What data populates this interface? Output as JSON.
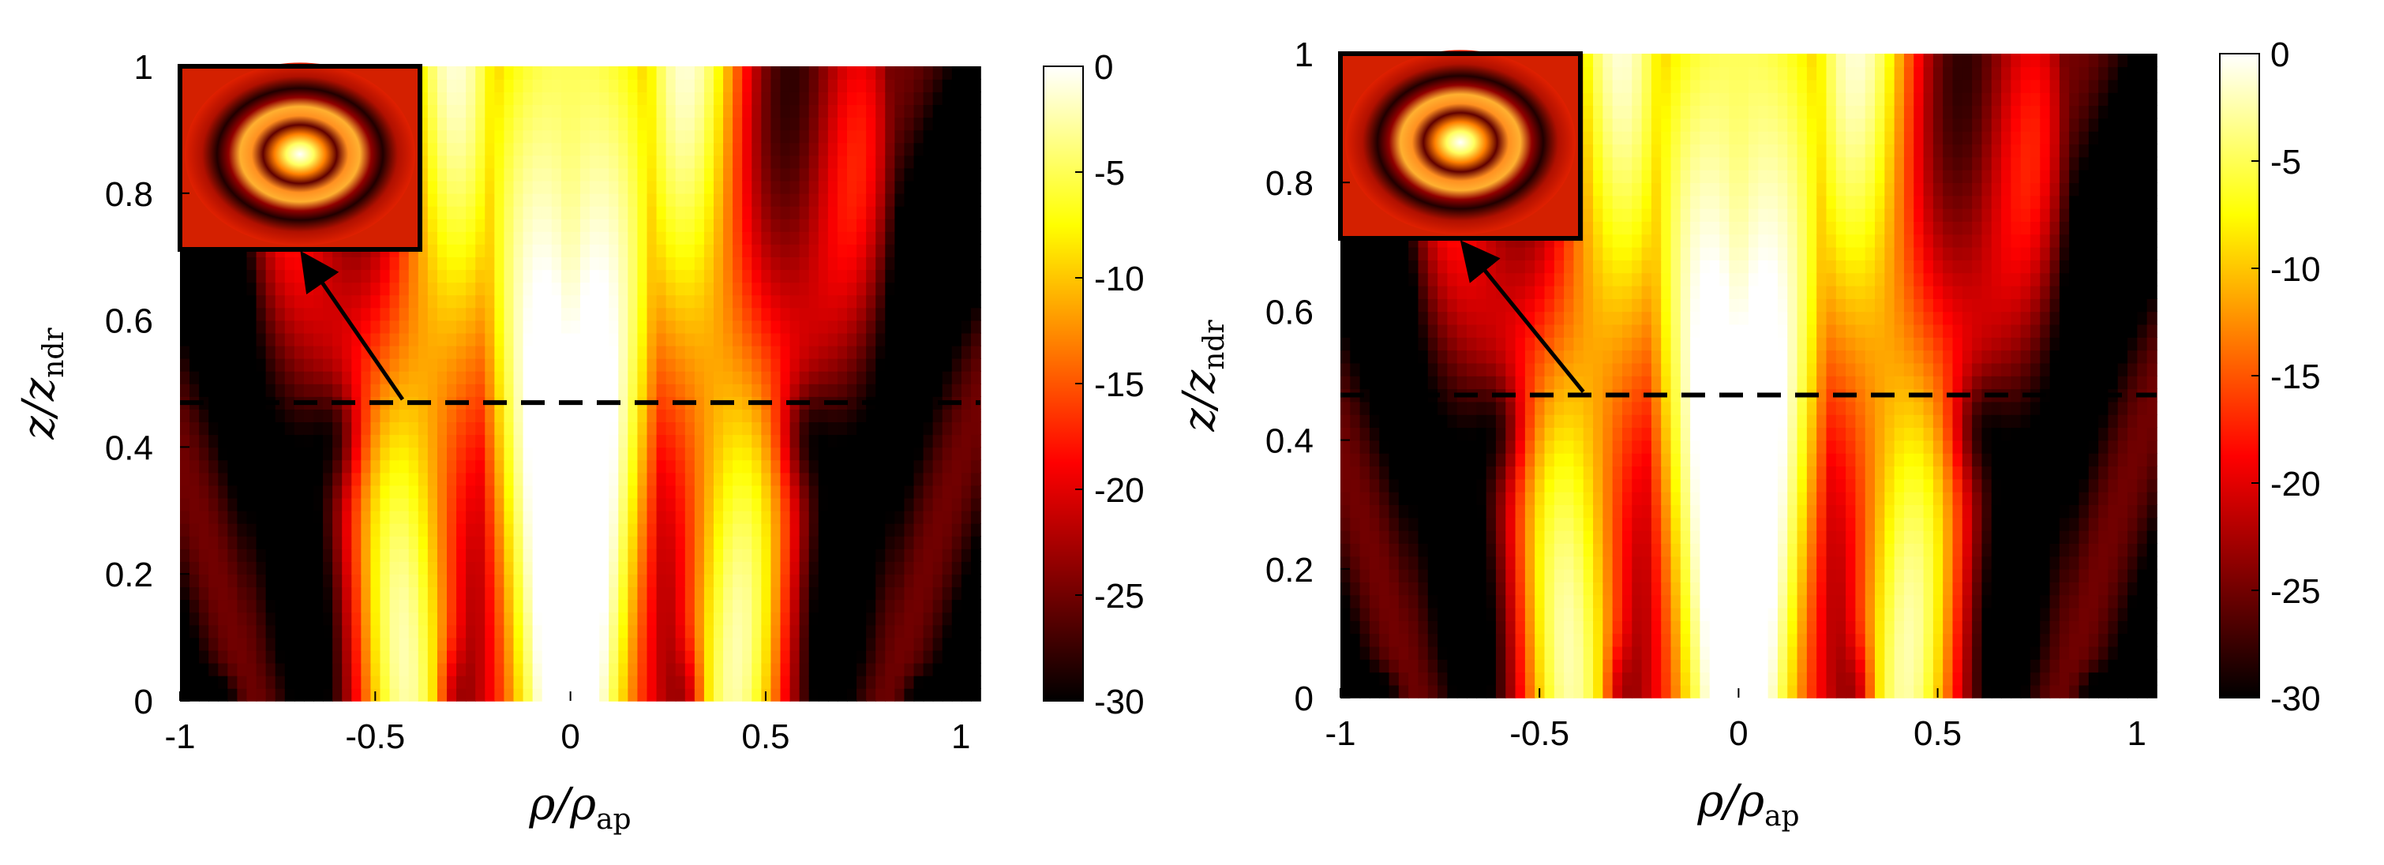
{
  "chart_data": [
    {
      "type": "heatmap",
      "colormap": "hot",
      "xlabel": {
        "main": "ρ/ρ",
        "sub": "ap"
      },
      "ylabel": {
        "main": "z/z",
        "sub": "ndr"
      },
      "xlim": [
        -1,
        1.05
      ],
      "ylim": [
        0,
        1
      ],
      "x_ticks": [
        "-1",
        "-0.5",
        "0",
        "0.5",
        "1"
      ],
      "y_ticks": [
        "0",
        "0.2",
        "0.4",
        "0.6",
        "0.8",
        "1"
      ],
      "colorbar": {
        "range": [
          -30,
          0
        ],
        "ticks": [
          "0",
          "-5",
          "-10",
          "-15",
          "-20",
          "-25",
          "-30"
        ]
      },
      "dashed_line_z": 0.47,
      "inset": "transverse-ring-pattern",
      "arrow_from_x": -0.43
    },
    {
      "type": "heatmap",
      "colormap": "hot",
      "xlabel": {
        "main": "ρ/ρ",
        "sub": "ap"
      },
      "ylabel": {
        "main": "z/z",
        "sub": "ndr"
      },
      "xlim": [
        -1,
        1.05
      ],
      "ylim": [
        0,
        1
      ],
      "x_ticks": [
        "-1",
        "-0.5",
        "0",
        "0.5",
        "1"
      ],
      "y_ticks": [
        "0",
        "0.2",
        "0.4",
        "0.6",
        "0.8",
        "1"
      ],
      "colorbar": {
        "range": [
          -30,
          0
        ],
        "ticks": [
          "0",
          "-5",
          "-10",
          "-15",
          "-20",
          "-25",
          "-30"
        ]
      },
      "dashed_line_z": 0.47,
      "inset": "transverse-ring-pattern",
      "arrow_from_x": -0.39
    }
  ]
}
